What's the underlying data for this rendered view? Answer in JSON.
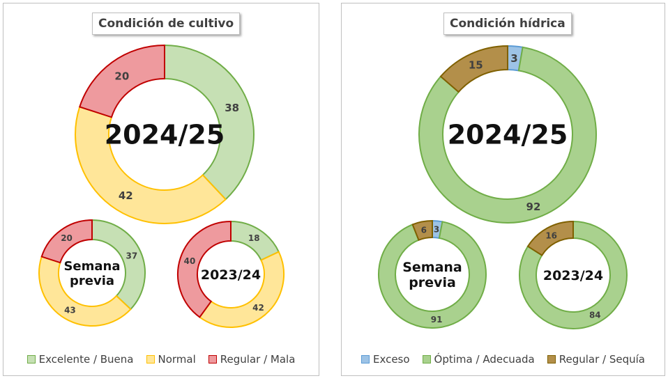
{
  "chart_data": [
    {
      "type": "donut",
      "title": "Condición de cultivo",
      "categories": [
        "Excelente / Buena",
        "Normal",
        "Regular / Mala"
      ],
      "colors": [
        "#c6e0b4",
        "#ffe699",
        "#ee9a9e"
      ],
      "stroke_colors": [
        "#70ad47",
        "#ffc000",
        "#c00000"
      ],
      "legend_position": "bottom",
      "donuts": [
        {
          "label": "2024/25",
          "values": [
            38,
            42,
            20
          ]
        },
        {
          "label": "Semana previa",
          "values": [
            37,
            43,
            20
          ]
        },
        {
          "label": "2023/24",
          "values": [
            18,
            42,
            40
          ]
        }
      ]
    },
    {
      "type": "donut",
      "title": "Condición hídrica",
      "categories": [
        "Exceso",
        "Óptima / Adecuada",
        "Regular / Sequía"
      ],
      "colors": [
        "#9dc3e6",
        "#a9d18e",
        "#b38f4a"
      ],
      "stroke_colors": [
        "#5b9bd5",
        "#70ad47",
        "#7f6000"
      ],
      "legend_position": "bottom",
      "donuts": [
        {
          "label": "2024/25",
          "values": [
            3,
            92,
            15
          ]
        },
        {
          "label": "Semana previa",
          "values": [
            3,
            91,
            6
          ]
        },
        {
          "label": "2023/24",
          "values": [
            0,
            84,
            16
          ]
        }
      ]
    }
  ]
}
